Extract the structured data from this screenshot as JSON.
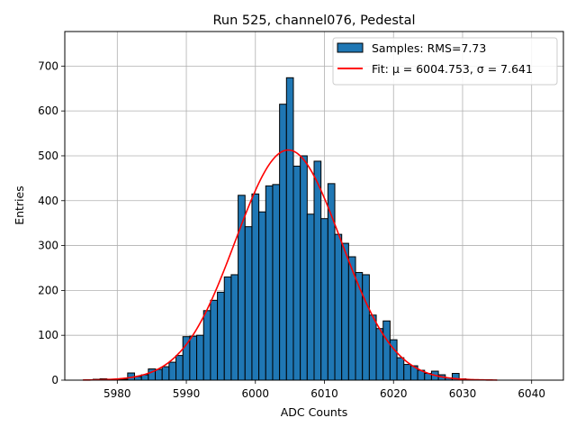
{
  "chart_data": {
    "type": "bar",
    "title": "Run 525, channel076, Pedestal",
    "xlabel": "ADC Counts",
    "ylabel": "Entries",
    "xlim": [
      5972.4,
      6044.6
    ],
    "ylim": [
      0,
      777
    ],
    "xticks": [
      5980,
      5990,
      6000,
      6010,
      6020,
      6030,
      6040
    ],
    "yticks": [
      0,
      100,
      200,
      300,
      400,
      500,
      600,
      700
    ],
    "grid": true,
    "legend_position": "top-right",
    "legend": [
      {
        "label": "Samples: RMS=7.73",
        "kind": "patch",
        "color": "#1f77b4"
      },
      {
        "label": "Fit: μ = 6004.753, σ = 7.641",
        "kind": "line",
        "color": "#ff0000"
      }
    ],
    "histogram": {
      "bin_start": 5975.5,
      "bin_width": 1,
      "counts": [
        1,
        2,
        3,
        2,
        2,
        2,
        16,
        8,
        12,
        25,
        24,
        30,
        40,
        55,
        97,
        98,
        100,
        155,
        178,
        196,
        230,
        235,
        412,
        342,
        415,
        375,
        433,
        436,
        615,
        674,
        477,
        500,
        370,
        488,
        360,
        438,
        325,
        305,
        275,
        240,
        235,
        145,
        115,
        132,
        90,
        50,
        35,
        32,
        22,
        15,
        20,
        12,
        5,
        15,
        3
      ],
      "color": "#1f77b4",
      "edge_color": "#000000"
    },
    "fit": {
      "type": "gaussian",
      "mu": 6004.753,
      "sigma": 7.641,
      "amplitude": 513,
      "x_range": [
        5975.0,
        6035.0
      ],
      "color": "#ff0000"
    }
  }
}
